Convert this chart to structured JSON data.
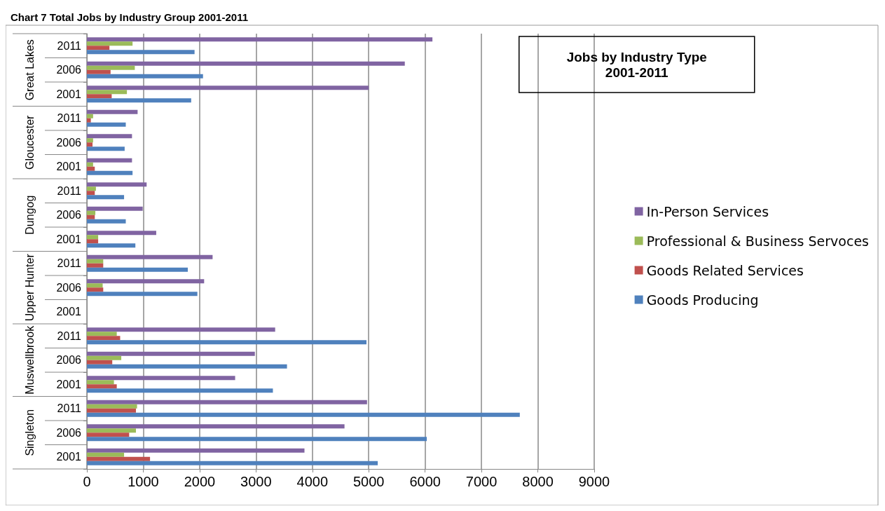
{
  "chart_data": {
    "type": "bar",
    "orientation": "horizontal",
    "title": "Jobs by Industry Type\n2001-2011",
    "subtitle": "Chart 7 Total Jobs by Industry Group 2001-2011",
    "categories": [
      "2011",
      "2006",
      "2001",
      "2011",
      "2006",
      "2001",
      "2011",
      "2006",
      "2001",
      "2011",
      "2006",
      "2001",
      "2011",
      "2006",
      "2001",
      "2011",
      "2006",
      "2001"
    ],
    "annotations": [
      "Great Lakes",
      "Gloucester",
      "Dungog",
      "Upper Hunter",
      "Muswellbrook",
      "Singleton"
    ],
    "series": [
      {
        "name": "In-Person Services",
        "color": "#8064a2",
        "values": [
          6130,
          5640,
          5000,
          900,
          800,
          800,
          1060,
          990,
          1230,
          2230,
          2080,
          null,
          3340,
          2980,
          2630,
          4970,
          4570,
          3860
        ]
      },
      {
        "name": "Professional & Business Servoces",
        "color": "#9bbb59",
        "values": [
          810,
          850,
          710,
          110,
          110,
          110,
          160,
          150,
          200,
          290,
          280,
          null,
          530,
          610,
          480,
          890,
          870,
          660
        ]
      },
      {
        "name": "Goods Related Services",
        "color": "#c0504d",
        "values": [
          400,
          420,
          440,
          70,
          100,
          140,
          140,
          140,
          200,
          290,
          290,
          null,
          590,
          450,
          530,
          870,
          750,
          1120
        ]
      },
      {
        "name": "Goods Producing",
        "color": "#4f81bd",
        "values": [
          1910,
          2060,
          1850,
          690,
          670,
          810,
          660,
          690,
          860,
          1790,
          1960,
          null,
          4960,
          3550,
          3300,
          7680,
          6030,
          5160
        ]
      }
    ],
    "xlim": [
      0,
      9000
    ],
    "xticks": [
      0,
      1000,
      2000,
      3000,
      4000,
      5000,
      6000,
      7000,
      8000,
      9000
    ],
    "grid": "x",
    "legend": "right"
  }
}
